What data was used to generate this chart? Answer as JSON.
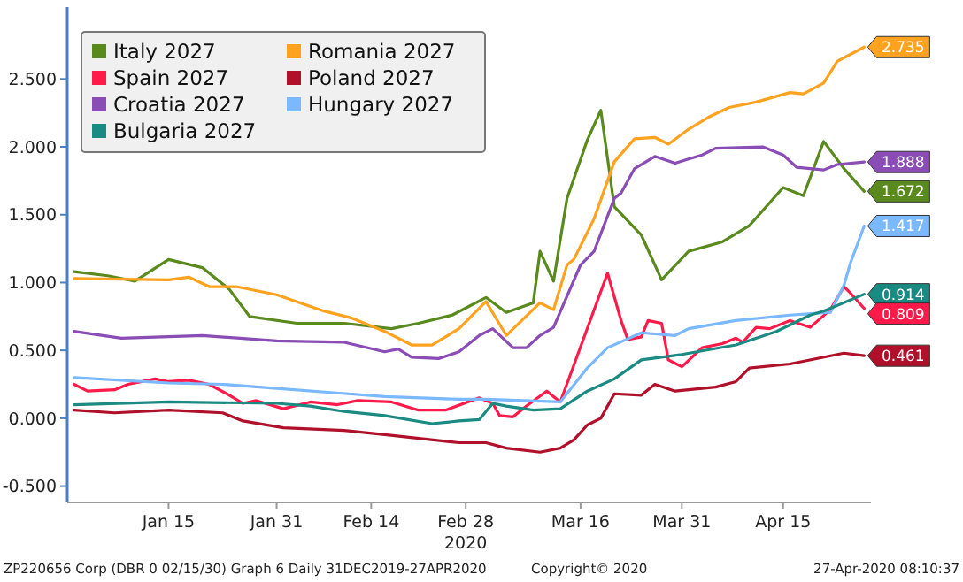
{
  "chart_data": {
    "type": "line",
    "xlim": [
      "2019-12-31",
      "2020-04-28"
    ],
    "ylim": [
      -0.62,
      3.03
    ],
    "yticks": [
      {
        "value": -0.5,
        "label": "-0.500"
      },
      {
        "value": 0,
        "label": "0.000"
      },
      {
        "value": 0.5,
        "label": "0.500"
      },
      {
        "value": 1,
        "label": "1.000"
      },
      {
        "value": 1.5,
        "label": "1.500"
      },
      {
        "value": 2,
        "label": "2.000"
      },
      {
        "value": 2.5,
        "label": "2.500"
      }
    ],
    "xticks": [
      {
        "value": "2020-01-15",
        "label": "Jan 15"
      },
      {
        "value": "2020-01-31",
        "label": "Jan 31"
      },
      {
        "value": "2020-02-14",
        "label": "Feb 14"
      },
      {
        "value": "2020-02-28",
        "label": "Feb 28\n2020"
      },
      {
        "value": "2020-03-16",
        "label": "Mar 16"
      },
      {
        "value": "2020-03-31",
        "label": "Mar 31"
      },
      {
        "value": "2020-04-15",
        "label": "Apr 15"
      }
    ],
    "grid": false,
    "legend": "top left",
    "line_style": "solid",
    "marker": "none",
    "annotations": [
      "ZP220656 Corp (DBR 0 02/15/30) Graph 6  Daily 31DEC2019-27APR2020",
      "Copyright© 2020",
      "27-Apr-2020 08:10:37"
    ],
    "series": [
      {
        "name": "Italy 2027",
        "color": "#5a8a1e",
        "x": [
          "2020-01-01",
          "2020-01-06",
          "2020-01-10",
          "2020-01-15",
          "2020-01-20",
          "2020-01-24",
          "2020-01-27",
          "2020-02-03",
          "2020-02-10",
          "2020-02-17",
          "2020-02-21",
          "2020-02-26",
          "2020-03-02",
          "2020-03-05",
          "2020-03-09",
          "2020-03-10",
          "2020-03-12",
          "2020-03-14",
          "2020-03-17",
          "2020-03-19",
          "2020-03-21",
          "2020-03-25",
          "2020-03-28",
          "2020-04-01",
          "2020-04-06",
          "2020-04-10",
          "2020-04-15",
          "2020-04-18",
          "2020-04-21",
          "2020-04-24",
          "2020-04-27"
        ],
        "values": [
          1.08,
          1.05,
          1.01,
          1.17,
          1.11,
          0.95,
          0.75,
          0.7,
          0.7,
          0.66,
          0.7,
          0.76,
          0.89,
          0.78,
          0.85,
          1.23,
          1.01,
          1.62,
          2.05,
          2.27,
          1.56,
          1.35,
          1.02,
          1.23,
          1.3,
          1.42,
          1.7,
          1.64,
          2.04,
          1.84,
          1.672
        ],
        "value_labels": [
          null,
          null,
          null,
          null,
          null,
          null,
          null,
          null,
          null,
          null,
          null,
          null,
          null,
          null,
          null,
          null,
          null,
          null,
          null,
          null,
          null,
          null,
          null,
          null,
          null,
          null,
          null,
          null,
          null,
          null,
          "1.672"
        ]
      },
      {
        "name": "Romania 2027",
        "color": "#ffa21f",
        "x": [
          "2020-01-01",
          "2020-01-15",
          "2020-01-18",
          "2020-01-21",
          "2020-01-25",
          "2020-01-31",
          "2020-02-07",
          "2020-02-11",
          "2020-02-16",
          "2020-02-20",
          "2020-02-23",
          "2020-02-27",
          "2020-03-02",
          "2020-03-05",
          "2020-03-10",
          "2020-03-12",
          "2020-03-14",
          "2020-03-15",
          "2020-03-18",
          "2020-03-21",
          "2020-03-24",
          "2020-03-27",
          "2020-03-29",
          "2020-04-01",
          "2020-04-04",
          "2020-04-07",
          "2020-04-11",
          "2020-04-16",
          "2020-04-18",
          "2020-04-21",
          "2020-04-23",
          "2020-04-27"
        ],
        "values": [
          1.03,
          1.02,
          1.04,
          0.97,
          0.97,
          0.91,
          0.79,
          0.74,
          0.64,
          0.54,
          0.54,
          0.66,
          0.86,
          0.61,
          0.85,
          0.8,
          1.13,
          1.17,
          1.47,
          1.89,
          2.06,
          2.07,
          2.02,
          2.13,
          2.22,
          2.29,
          2.33,
          2.4,
          2.39,
          2.47,
          2.63,
          2.735
        ],
        "value_labels": [
          null,
          null,
          null,
          null,
          null,
          null,
          null,
          null,
          null,
          null,
          null,
          null,
          null,
          null,
          null,
          null,
          null,
          null,
          null,
          null,
          null,
          null,
          null,
          null,
          null,
          null,
          null,
          null,
          null,
          null,
          null,
          "2.735"
        ]
      },
      {
        "name": "Spain 2027",
        "color": "#ff1a4a",
        "x": [
          "2020-01-01",
          "2020-01-03",
          "2020-01-07",
          "2020-01-09",
          "2020-01-13",
          "2020-01-15",
          "2020-01-18",
          "2020-01-21",
          "2020-01-24",
          "2020-01-26",
          "2020-01-28",
          "2020-02-01",
          "2020-02-05",
          "2020-02-09",
          "2020-02-12",
          "2020-02-17",
          "2020-02-21",
          "2020-02-25",
          "2020-03-01",
          "2020-03-03",
          "2020-03-04",
          "2020-03-06",
          "2020-03-08",
          "2020-03-11",
          "2020-03-13",
          "2020-03-15",
          "2020-03-20",
          "2020-03-22",
          "2020-03-23",
          "2020-03-25",
          "2020-03-26",
          "2020-03-28",
          "2020-03-29",
          "2020-03-31",
          "2020-04-03",
          "2020-04-06",
          "2020-04-08",
          "2020-04-09",
          "2020-04-11",
          "2020-04-13",
          "2020-04-16",
          "2020-04-19",
          "2020-04-22",
          "2020-04-24",
          "2020-04-25",
          "2020-04-27"
        ],
        "values": [
          0.25,
          0.2,
          0.21,
          0.25,
          0.29,
          0.27,
          0.28,
          0.25,
          0.17,
          0.11,
          0.13,
          0.07,
          0.12,
          0.1,
          0.13,
          0.12,
          0.06,
          0.06,
          0.15,
          0.11,
          0.02,
          0.01,
          0.09,
          0.2,
          0.12,
          0.39,
          1.07,
          0.72,
          0.58,
          0.6,
          0.72,
          0.7,
          0.43,
          0.38,
          0.52,
          0.55,
          0.59,
          0.56,
          0.67,
          0.66,
          0.72,
          0.67,
          0.8,
          0.97,
          0.92,
          0.809
        ],
        "value_labels": [
          null,
          null,
          null,
          null,
          null,
          null,
          null,
          null,
          null,
          null,
          null,
          null,
          null,
          null,
          null,
          null,
          null,
          null,
          null,
          null,
          null,
          null,
          null,
          null,
          null,
          null,
          null,
          null,
          null,
          null,
          null,
          null,
          null,
          null,
          null,
          null,
          null,
          null,
          null,
          null,
          null,
          null,
          null,
          null,
          null,
          "0.809"
        ]
      },
      {
        "name": "Poland 2027",
        "color": "#b0102a",
        "x": [
          "2020-01-01",
          "2020-01-07",
          "2020-01-15",
          "2020-01-23",
          "2020-01-26",
          "2020-02-01",
          "2020-02-10",
          "2020-02-16",
          "2020-02-27",
          "2020-03-02",
          "2020-03-05",
          "2020-03-10",
          "2020-03-13",
          "2020-03-15",
          "2020-03-17",
          "2020-03-19",
          "2020-03-21",
          "2020-03-25",
          "2020-03-27",
          "2020-03-30",
          "2020-04-05",
          "2020-04-08",
          "2020-04-10",
          "2020-04-16",
          "2020-04-24",
          "2020-04-27"
        ],
        "values": [
          0.06,
          0.04,
          0.06,
          0.04,
          -0.02,
          -0.07,
          -0.09,
          -0.12,
          -0.18,
          -0.18,
          -0.22,
          -0.25,
          -0.22,
          -0.16,
          -0.05,
          0.0,
          0.18,
          0.17,
          0.25,
          0.2,
          0.23,
          0.27,
          0.37,
          0.4,
          0.48,
          0.461
        ],
        "value_labels": [
          null,
          null,
          null,
          null,
          null,
          null,
          null,
          null,
          null,
          null,
          null,
          null,
          null,
          null,
          null,
          null,
          null,
          null,
          null,
          null,
          null,
          null,
          null,
          null,
          null,
          "0.461"
        ]
      },
      {
        "name": "Croatia 2027",
        "color": "#8a4cb5",
        "x": [
          "2020-01-01",
          "2020-01-08",
          "2020-01-20",
          "2020-01-31",
          "2020-02-10",
          "2020-02-16",
          "2020-02-18",
          "2020-02-20",
          "2020-02-24",
          "2020-02-27",
          "2020-03-01",
          "2020-03-03",
          "2020-03-06",
          "2020-03-08",
          "2020-03-10",
          "2020-03-12",
          "2020-03-16",
          "2020-03-18",
          "2020-03-21",
          "2020-03-22",
          "2020-03-24",
          "2020-03-27",
          "2020-03-30",
          "2020-04-01",
          "2020-04-03",
          "2020-04-05",
          "2020-04-12",
          "2020-04-15",
          "2020-04-17",
          "2020-04-21",
          "2020-04-23",
          "2020-04-27"
        ],
        "values": [
          0.64,
          0.59,
          0.61,
          0.57,
          0.56,
          0.49,
          0.51,
          0.45,
          0.44,
          0.49,
          0.61,
          0.66,
          0.52,
          0.52,
          0.61,
          0.67,
          1.13,
          1.23,
          1.62,
          1.66,
          1.84,
          1.93,
          1.88,
          1.91,
          1.94,
          1.99,
          2.0,
          1.94,
          1.85,
          1.83,
          1.87,
          1.888
        ],
        "value_labels": [
          null,
          null,
          null,
          null,
          null,
          null,
          null,
          null,
          null,
          null,
          null,
          null,
          null,
          null,
          null,
          null,
          null,
          null,
          null,
          null,
          null,
          null,
          null,
          null,
          null,
          null,
          null,
          null,
          null,
          null,
          null,
          "1.888"
        ]
      },
      {
        "name": "Hungary 2027",
        "color": "#7ab8ff",
        "x": [
          "2020-01-01",
          "2020-01-15",
          "2020-01-23",
          "2020-01-31",
          "2020-02-08",
          "2020-02-16",
          "2020-02-27",
          "2020-03-02",
          "2020-03-13",
          "2020-03-17",
          "2020-03-20",
          "2020-03-25",
          "2020-03-30",
          "2020-04-01",
          "2020-04-08",
          "2020-04-16",
          "2020-04-22",
          "2020-04-24",
          "2020-04-25",
          "2020-04-27"
        ],
        "values": [
          0.3,
          0.26,
          0.25,
          0.22,
          0.19,
          0.16,
          0.14,
          0.14,
          0.12,
          0.37,
          0.52,
          0.63,
          0.61,
          0.66,
          0.72,
          0.76,
          0.78,
          0.98,
          1.15,
          1.417
        ],
        "value_labels": [
          null,
          null,
          null,
          null,
          null,
          null,
          null,
          null,
          null,
          null,
          null,
          null,
          null,
          null,
          null,
          null,
          null,
          null,
          null,
          "1.417"
        ]
      },
      {
        "name": "Bulgaria 2027",
        "color": "#1a8a82",
        "x": [
          "2020-01-01",
          "2020-01-15",
          "2020-01-31",
          "2020-02-05",
          "2020-02-10",
          "2020-02-16",
          "2020-02-23",
          "2020-02-27",
          "2020-03-01",
          "2020-03-03",
          "2020-03-05",
          "2020-03-09",
          "2020-03-13",
          "2020-03-17",
          "2020-03-21",
          "2020-03-25",
          "2020-03-31",
          "2020-04-08",
          "2020-04-14",
          "2020-04-19",
          "2020-04-21",
          "2020-04-27"
        ],
        "values": [
          0.1,
          0.12,
          0.11,
          0.09,
          0.05,
          0.02,
          -0.04,
          -0.02,
          -0.01,
          0.11,
          0.09,
          0.06,
          0.07,
          0.2,
          0.29,
          0.43,
          0.47,
          0.54,
          0.64,
          0.76,
          0.79,
          0.914
        ],
        "value_labels": [
          null,
          null,
          null,
          null,
          null,
          null,
          null,
          null,
          null,
          null,
          null,
          null,
          null,
          null,
          null,
          null,
          null,
          null,
          null,
          null,
          null,
          "0.914"
        ]
      }
    ]
  }
}
